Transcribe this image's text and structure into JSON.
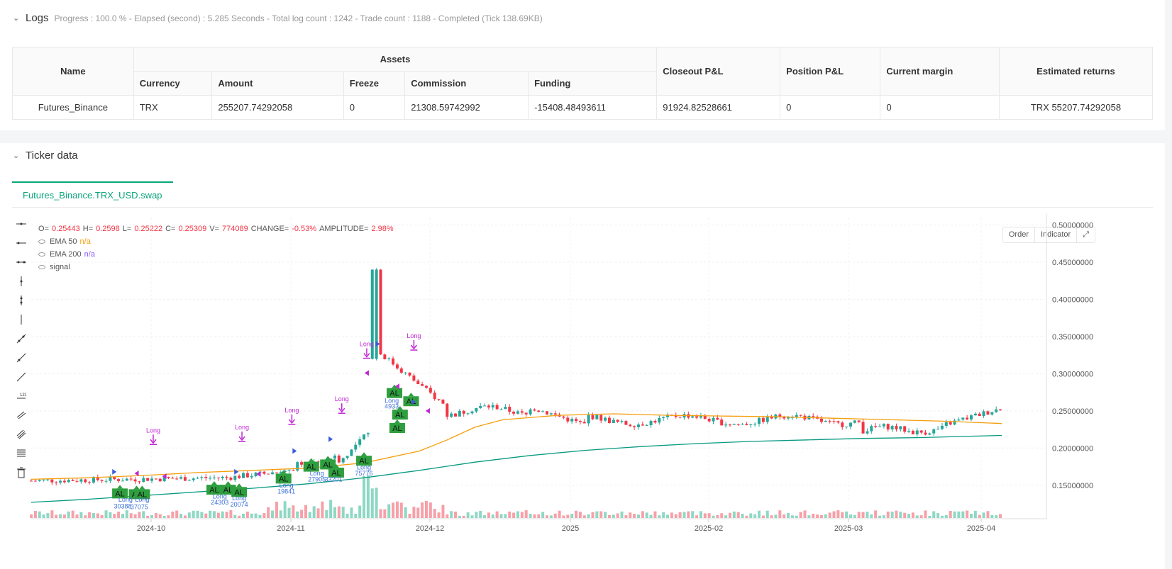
{
  "logs": {
    "title": "Logs",
    "meta": "Progress : 100.0 % - Elapsed (second) : 5.285  Seconds - Total log count : 1242 - Trade count : 1188 - Completed (Tick 138.69KB)"
  },
  "table": {
    "headers": {
      "name": "Name",
      "assets": "Assets",
      "closeout": "Closeout P&L",
      "position": "Position P&L",
      "margin": "Current margin",
      "returns": "Estimated returns",
      "currency": "Currency",
      "amount": "Amount",
      "freeze": "Freeze",
      "commission": "Commission",
      "funding": "Funding"
    },
    "row": {
      "name": "Futures_Binance",
      "currency": "TRX",
      "amount": "255207.74292058",
      "freeze": "0",
      "commission": "21308.59742992",
      "funding": "-15408.48493611",
      "closeout": "91924.82528661",
      "position": "0",
      "margin": "0",
      "returns": "TRX 55207.74292058"
    }
  },
  "ticker": {
    "title": "Ticker data",
    "tab": "Futures_Binance.TRX_USD.swap"
  },
  "legend": {
    "o_label": "O=",
    "o": "0.25443",
    "h_label": "H=",
    "h": "0.2598",
    "l_label": "L=",
    "l": "0.25222",
    "c_label": "C=",
    "c": "0.25309",
    "v_label": "V=",
    "v": "774089",
    "change_label": "CHANGE=",
    "change": "-0.53%",
    "amp_label": "AMPLITUDE=",
    "amp": "2.98%",
    "ema50": "EMA 50",
    "ema50_val": "n/a",
    "ema200": "EMA 200",
    "ema200_val": "n/a",
    "signal": "signal"
  },
  "buttons": {
    "order": "Order",
    "indicator": "Indicator"
  },
  "chart_data": {
    "type": "candlestick",
    "y_ticks": [
      "0.50000000",
      "0.45000000",
      "0.40000000",
      "0.35000000",
      "0.30000000",
      "0.25000000",
      "0.20000000",
      "0.15000000"
    ],
    "x_ticks": [
      "2024-10",
      "2024-11",
      "2024-12",
      "2025",
      "2025-02",
      "2025-03",
      "2025-04"
    ],
    "ylim": [
      0.105,
      0.51
    ],
    "colors": {
      "up": "#26a69a",
      "down": "#f23645",
      "ema50": "#f59e0b",
      "ema200": "#089981",
      "signal": "#c026d3",
      "al": "#2e9e3e"
    },
    "ema50": [
      [
        0,
        0.158
      ],
      [
        20,
        0.16
      ],
      [
        40,
        0.163
      ],
      [
        60,
        0.167
      ],
      [
        80,
        0.17
      ],
      [
        100,
        0.173
      ],
      [
        120,
        0.18
      ],
      [
        140,
        0.196
      ],
      [
        150,
        0.211
      ],
      [
        160,
        0.228
      ],
      [
        170,
        0.238
      ],
      [
        190,
        0.244
      ],
      [
        210,
        0.246
      ],
      [
        230,
        0.244
      ],
      [
        250,
        0.243
      ],
      [
        270,
        0.242
      ],
      [
        290,
        0.24
      ],
      [
        310,
        0.238
      ],
      [
        330,
        0.236
      ],
      [
        350,
        0.233
      ]
    ],
    "ema200": [
      [
        0,
        0.127
      ],
      [
        20,
        0.131
      ],
      [
        40,
        0.136
      ],
      [
        60,
        0.141
      ],
      [
        80,
        0.146
      ],
      [
        100,
        0.152
      ],
      [
        120,
        0.16
      ],
      [
        140,
        0.17
      ],
      [
        160,
        0.181
      ],
      [
        180,
        0.19
      ],
      [
        200,
        0.197
      ],
      [
        220,
        0.202
      ],
      [
        240,
        0.206
      ],
      [
        260,
        0.209
      ],
      [
        280,
        0.211
      ],
      [
        300,
        0.213
      ],
      [
        320,
        0.214
      ],
      [
        340,
        0.216
      ],
      [
        350,
        0.217
      ]
    ],
    "al_labels": [
      {
        "t": 32,
        "p": 0.138,
        "text": "AL"
      },
      {
        "t": 38,
        "p": 0.137,
        "text": "AL"
      },
      {
        "t": 40,
        "p": 0.137,
        "text": "AL"
      },
      {
        "t": 66,
        "p": 0.143,
        "text": "AL"
      },
      {
        "t": 71,
        "p": 0.143,
        "text": "AL"
      },
      {
        "t": 75,
        "p": 0.14,
        "text": "AL"
      },
      {
        "t": 91,
        "p": 0.158,
        "text": "AL"
      },
      {
        "t": 101,
        "p": 0.174,
        "text": "AL"
      },
      {
        "t": 107,
        "p": 0.177,
        "text": "AL"
      },
      {
        "t": 110,
        "p": 0.166,
        "text": "AL"
      },
      {
        "t": 120,
        "p": 0.182,
        "text": "AL"
      },
      {
        "t": 131,
        "p": 0.273,
        "text": "AL"
      },
      {
        "t": 137,
        "p": 0.262,
        "text": "AL"
      },
      {
        "t": 133,
        "p": 0.244,
        "text": "AL"
      },
      {
        "t": 132,
        "p": 0.226,
        "text": "AL"
      }
    ],
    "trade_labels": [
      {
        "t": 34,
        "p": 0.128,
        "text": "Long"
      },
      {
        "t": 33,
        "p": 0.119,
        "text": "30388"
      },
      {
        "t": 40,
        "p": 0.128,
        "text": "Long"
      },
      {
        "t": 39,
        "p": 0.118,
        "text": "37075"
      },
      {
        "t": 68,
        "p": 0.132,
        "text": "Long"
      },
      {
        "t": 68,
        "p": 0.124,
        "text": "24303"
      },
      {
        "t": 75,
        "p": 0.13,
        "text": "Long"
      },
      {
        "t": 75,
        "p": 0.121,
        "text": "20074"
      },
      {
        "t": 92,
        "p": 0.147,
        "text": "Long"
      },
      {
        "t": 92,
        "p": 0.139,
        "text": "19841"
      },
      {
        "t": 103,
        "p": 0.163,
        "text": "Long"
      },
      {
        "t": 103,
        "p": 0.155,
        "text": "27905"
      },
      {
        "t": 109,
        "p": 0.155,
        "text": "33201"
      },
      {
        "t": 120,
        "p": 0.171,
        "text": "Long"
      },
      {
        "t": 120,
        "p": 0.163,
        "text": "75776"
      },
      {
        "t": 130,
        "p": 0.261,
        "text": "Long"
      },
      {
        "t": 130,
        "p": 0.253,
        "text": "4933"
      }
    ],
    "signal_labels": [
      {
        "t": 44,
        "p": 0.221,
        "text": "Long"
      },
      {
        "t": 76,
        "p": 0.225,
        "text": "Long"
      },
      {
        "t": 94,
        "p": 0.248,
        "text": "Long"
      },
      {
        "t": 112,
        "p": 0.263,
        "text": "Long"
      },
      {
        "t": 121,
        "p": 0.337,
        "text": "Long"
      },
      {
        "t": 138,
        "p": 0.348,
        "text": "Long"
      }
    ]
  }
}
